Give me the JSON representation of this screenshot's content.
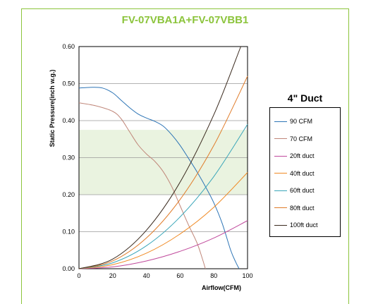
{
  "chart_data": {
    "type": "line",
    "title": "FV-07VBA1A+FV-07VBB1",
    "xlabel": "Airflow(CFM)",
    "ylabel": "Static Pressure(inch w.g.)",
    "xlim": [
      0,
      100
    ],
    "ylim": [
      0,
      0.6
    ],
    "xticks": [
      "0",
      "20",
      "40",
      "60",
      "80",
      "100"
    ],
    "yticks": [
      "0.00",
      "0.10",
      "0.20",
      "0.30",
      "0.40",
      "0.50",
      "0.60"
    ],
    "shaded_band": [
      0.2,
      0.375
    ],
    "grid": "horizontal",
    "legend_title": "4\" Duct",
    "legend_position": "right",
    "series": [
      {
        "name": "90 CFM",
        "color": "#2e75b6",
        "x": [
          0,
          8,
          14,
          20,
          25,
          30,
          35,
          40,
          45,
          50,
          55,
          60,
          65,
          70,
          75,
          80,
          85,
          90,
          93,
          95
        ],
        "y": [
          0.488,
          0.49,
          0.488,
          0.475,
          0.455,
          0.435,
          0.418,
          0.407,
          0.398,
          0.385,
          0.362,
          0.333,
          0.298,
          0.262,
          0.222,
          0.178,
          0.122,
          0.05,
          0.018,
          0.0
        ]
      },
      {
        "name": "70 CFM",
        "color": "#c0877a",
        "x": [
          0,
          10,
          20,
          25,
          30,
          35,
          40,
          45,
          50,
          55,
          60,
          65,
          70,
          73,
          75
        ],
        "y": [
          0.448,
          0.44,
          0.425,
          0.405,
          0.37,
          0.335,
          0.31,
          0.29,
          0.262,
          0.222,
          0.17,
          0.118,
          0.07,
          0.03,
          0.0
        ]
      },
      {
        "name": "20ft duct",
        "color": "#c04a9c",
        "x": [
          0,
          20,
          40,
          60,
          80,
          100
        ],
        "y": [
          0,
          0.005,
          0.021,
          0.047,
          0.083,
          0.13
        ]
      },
      {
        "name": "40ft duct",
        "color": "#f08a24",
        "x": [
          0,
          20,
          40,
          60,
          80,
          100
        ],
        "y": [
          0,
          0.011,
          0.042,
          0.094,
          0.166,
          0.26
        ]
      },
      {
        "name": "60ft duct",
        "color": "#3aa6b9",
        "x": [
          0,
          20,
          40,
          60,
          80,
          100
        ],
        "y": [
          0,
          0.016,
          0.062,
          0.14,
          0.249,
          0.39
        ]
      },
      {
        "name": "80ft duct",
        "color": "#e07c2a",
        "x": [
          0,
          20,
          40,
          60,
          80,
          100
        ],
        "y": [
          0,
          0.021,
          0.083,
          0.187,
          0.333,
          0.52
        ]
      },
      {
        "name": "100ft duct",
        "color": "#3a2a1e",
        "x": [
          0,
          20,
          40,
          60,
          80,
          96
        ],
        "y": [
          0,
          0.026,
          0.104,
          0.234,
          0.416,
          0.6
        ]
      }
    ]
  }
}
